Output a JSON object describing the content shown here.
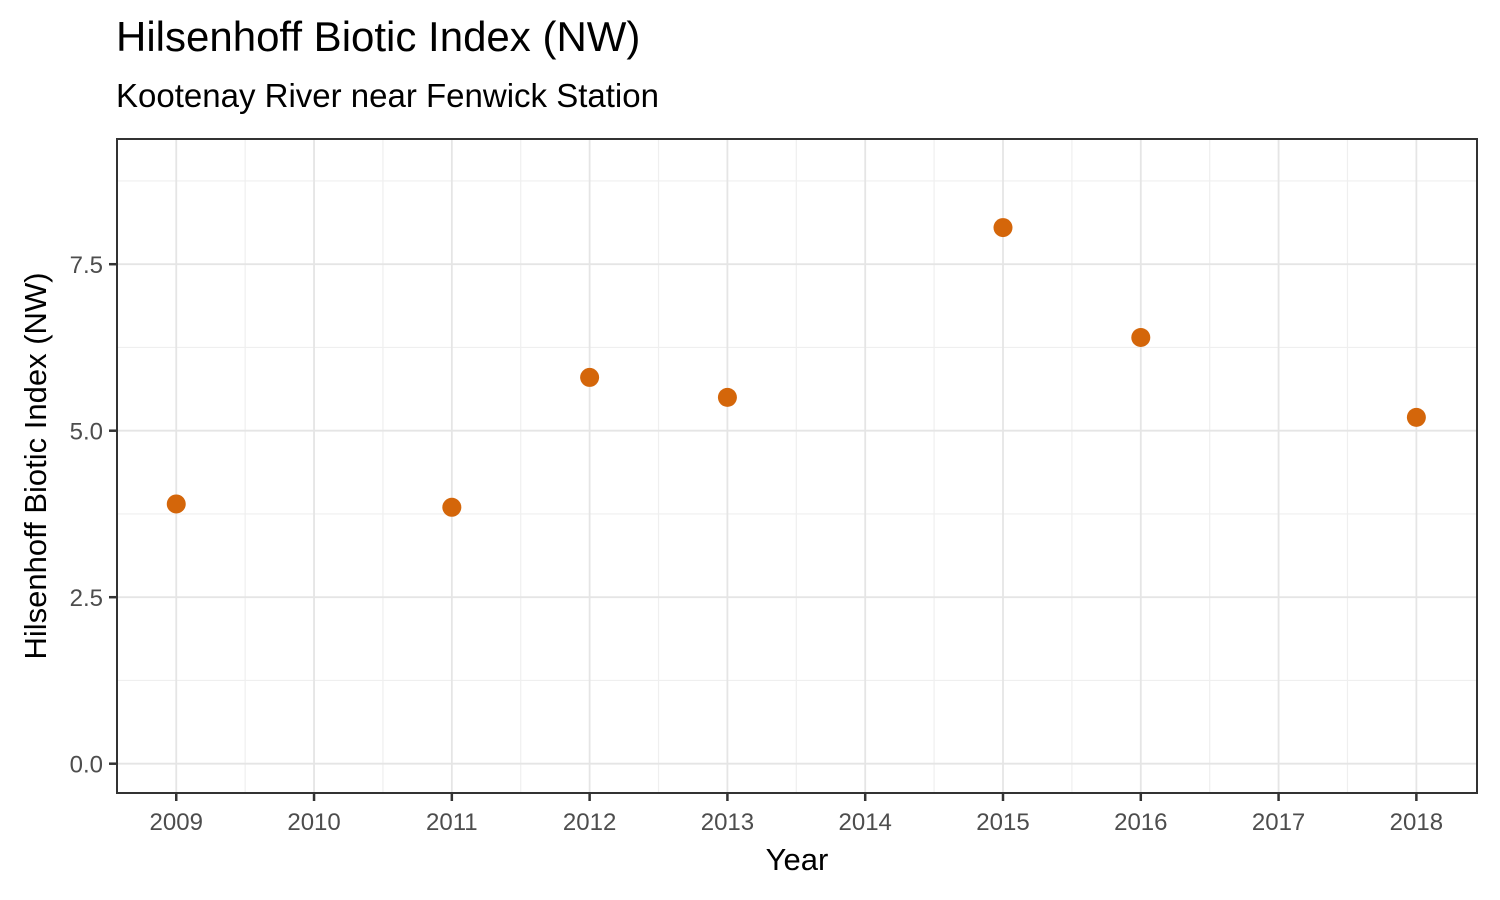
{
  "chart_data": {
    "type": "scatter",
    "title": "Hilsenhoff Biotic Index (NW)",
    "subtitle": "Kootenay River near Fenwick Station",
    "xlabel": "Year",
    "ylabel": "Hilsenhoff Biotic Index (NW)",
    "x": [
      2009,
      2011,
      2012,
      2013,
      2015,
      2016,
      2018
    ],
    "y": [
      3.9,
      3.85,
      5.8,
      5.5,
      8.05,
      6.4,
      5.2
    ],
    "x_ticks": [
      2009,
      2010,
      2011,
      2012,
      2013,
      2014,
      2015,
      2016,
      2017,
      2018
    ],
    "x_tick_labels": [
      "2009",
      "2010",
      "2011",
      "2012",
      "2013",
      "2014",
      "2015",
      "2016",
      "2017",
      "2018"
    ],
    "y_ticks": [
      0.0,
      2.5,
      5.0,
      7.5
    ],
    "y_tick_labels": [
      "0.0",
      "2.5",
      "5.0",
      "7.5"
    ],
    "x_domain": [
      2008.57,
      2018.44
    ],
    "y_domain": [
      -0.44,
      9.38
    ],
    "x_minor_step": 0.5,
    "y_minor_step": 1.25,
    "grid": "major+minor on white panel",
    "legend": "none",
    "colors": {
      "point": "#D4660A",
      "grid_major": "#E5E5E5",
      "grid_minor": "#EFEFEF",
      "panel_border": "#333333",
      "tick_mark": "#333333",
      "tick_label": "#4D4D4D",
      "text": "#000000",
      "background": "#FFFFFF"
    },
    "point_radius_px": 9.5
  }
}
